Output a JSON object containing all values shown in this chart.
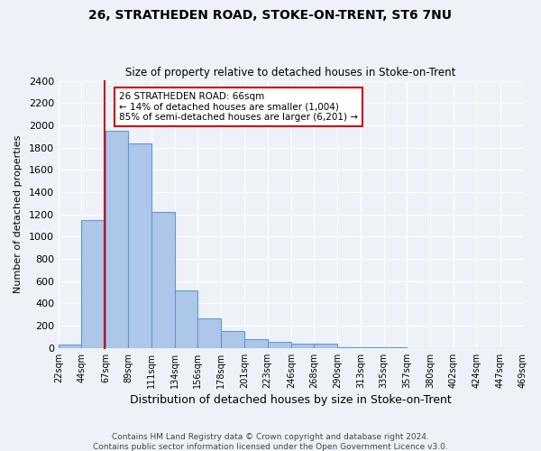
{
  "title": "26, STRATHEDEN ROAD, STOKE-ON-TRENT, ST6 7NU",
  "subtitle": "Size of property relative to detached houses in Stoke-on-Trent",
  "xlabel": "Distribution of detached houses by size in Stoke-on-Trent",
  "ylabel": "Number of detached properties",
  "bin_edges": [
    22,
    44,
    67,
    89,
    111,
    134,
    156,
    178,
    201,
    223,
    246,
    268,
    290,
    313,
    335,
    357,
    380,
    402,
    424,
    447,
    469
  ],
  "bin_labels": [
    "22sqm",
    "44sqm",
    "67sqm",
    "89sqm",
    "111sqm",
    "134sqm",
    "156sqm",
    "178sqm",
    "201sqm",
    "223sqm",
    "246sqm",
    "268sqm",
    "290sqm",
    "313sqm",
    "335sqm",
    "357sqm",
    "380sqm",
    "402sqm",
    "424sqm",
    "447sqm",
    "469sqm"
  ],
  "counts": [
    30,
    1150,
    1950,
    1840,
    1220,
    520,
    265,
    150,
    80,
    55,
    40,
    35,
    10,
    5,
    3,
    2,
    1,
    1,
    0,
    0
  ],
  "bar_color": "#aec6e8",
  "bar_edge_color": "#5b9bd5",
  "property_value": 66,
  "annotation_title": "26 STRATHEDEN ROAD: 66sqm",
  "annotation_line1": "← 14% of detached houses are smaller (1,004)",
  "annotation_line2": "85% of semi-detached houses are larger (6,201) →",
  "annotation_box_color": "#ffffff",
  "annotation_box_edge": "#cc0000",
  "vline_color": "#cc0000",
  "ylim": [
    0,
    2400
  ],
  "yticks": [
    0,
    200,
    400,
    600,
    800,
    1000,
    1200,
    1400,
    1600,
    1800,
    2000,
    2200,
    2400
  ],
  "background_color": "#eef2f8",
  "footer_line1": "Contains HM Land Registry data © Crown copyright and database right 2024.",
  "footer_line2": "Contains public sector information licensed under the Open Government Licence v3.0."
}
